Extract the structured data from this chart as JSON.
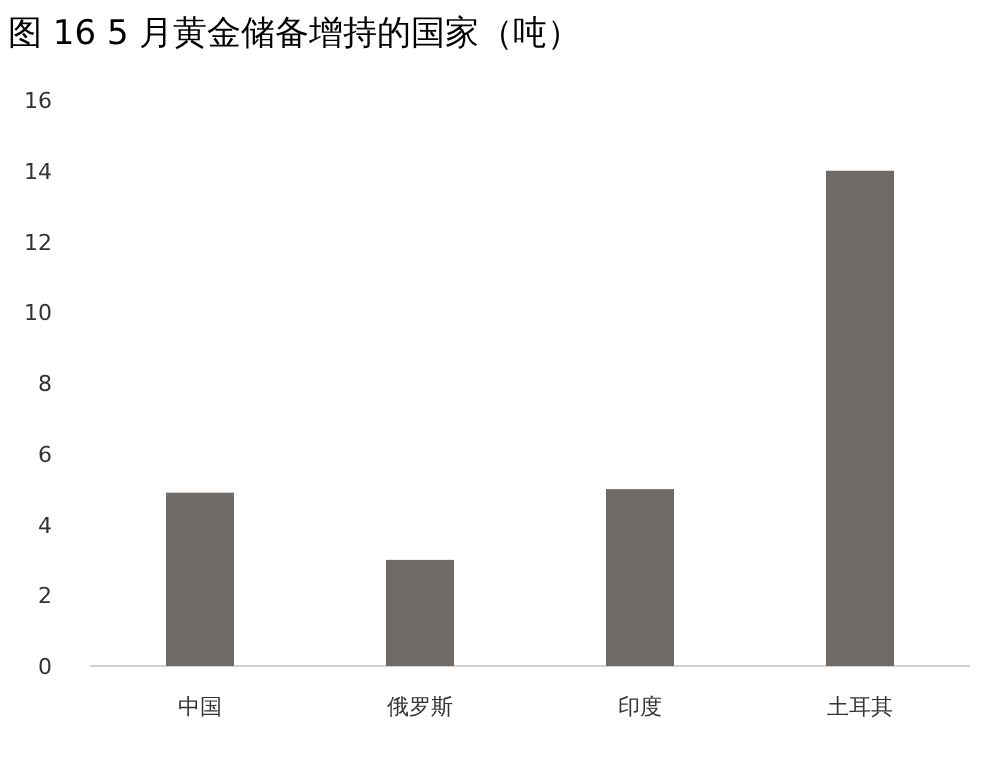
{
  "chart_data": {
    "type": "bar",
    "title": "图 16 5 月黄金储备增持的国家（吨）",
    "categories": [
      "中国",
      "俄罗斯",
      "印度",
      "土耳其"
    ],
    "values": [
      4.9,
      3.0,
      5.0,
      14.0
    ],
    "color": "#6f6b69",
    "ylim": [
      0,
      16
    ],
    "yticks": [
      0,
      2,
      4,
      6,
      8,
      10,
      12,
      14,
      16
    ]
  }
}
